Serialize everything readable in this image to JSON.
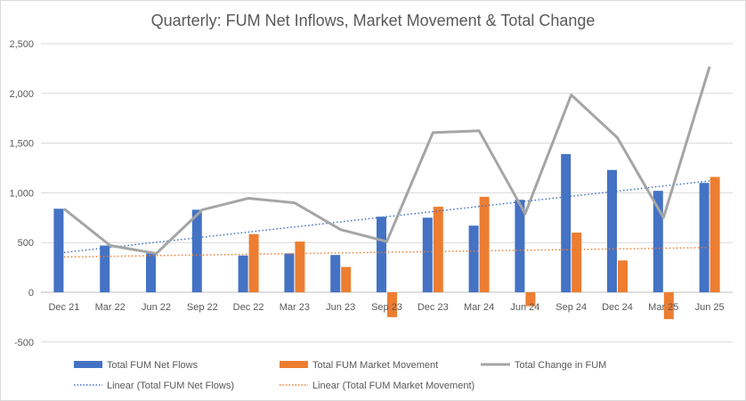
{
  "chart_data": {
    "type": "bar",
    "title": "Quarterly: FUM Net Inflows, Market Movement & Total Change",
    "categories": [
      "Dec 21",
      "Mar 22",
      "Jun 22",
      "Sep 22",
      "Dec 22",
      "Mar 23",
      "Jun 23",
      "Sep 23",
      "Dec 23",
      "Mar 24",
      "Jun 24",
      "Sep 24",
      "Dec 24",
      "Mar 25",
      "Jun 25"
    ],
    "ylim": [
      -500,
      2500
    ],
    "yticks": [
      -500,
      0,
      500,
      1000,
      1500,
      2000,
      2500
    ],
    "ytick_labels": [
      "-500",
      "0",
      "500",
      "1,000",
      "1,500",
      "2,000",
      "2,500"
    ],
    "gridlines": true,
    "legend_position": "bottom",
    "series": [
      {
        "name": "Total FUM Net Flows",
        "kind": "bar",
        "color": "#4472C4",
        "values": [
          840,
          470,
          390,
          830,
          370,
          390,
          375,
          760,
          750,
          670,
          930,
          1390,
          1230,
          1020,
          1100
        ]
      },
      {
        "name": "Total FUM Market Movement",
        "kind": "bar",
        "color": "#ED7D31",
        "values": [
          0,
          0,
          0,
          0,
          585,
          510,
          255,
          -250,
          860,
          960,
          -140,
          600,
          320,
          -270,
          1160
        ]
      },
      {
        "name": "Total Change in FUM",
        "kind": "line",
        "color": "#A5A5A5",
        "values": [
          840,
          470,
          390,
          830,
          945,
          900,
          630,
          510,
          1605,
          1625,
          790,
          1985,
          1555,
          750,
          2270
        ]
      }
    ],
    "trendlines": [
      {
        "name": "Linear (Total FUM Net Flows)",
        "color": "#4472C4",
        "style": "dotted",
        "start": 400,
        "end": 1120
      },
      {
        "name": "Linear (Total FUM Market Movement)",
        "color": "#ED7D31",
        "style": "dotted",
        "start": 355,
        "end": 450
      }
    ]
  }
}
